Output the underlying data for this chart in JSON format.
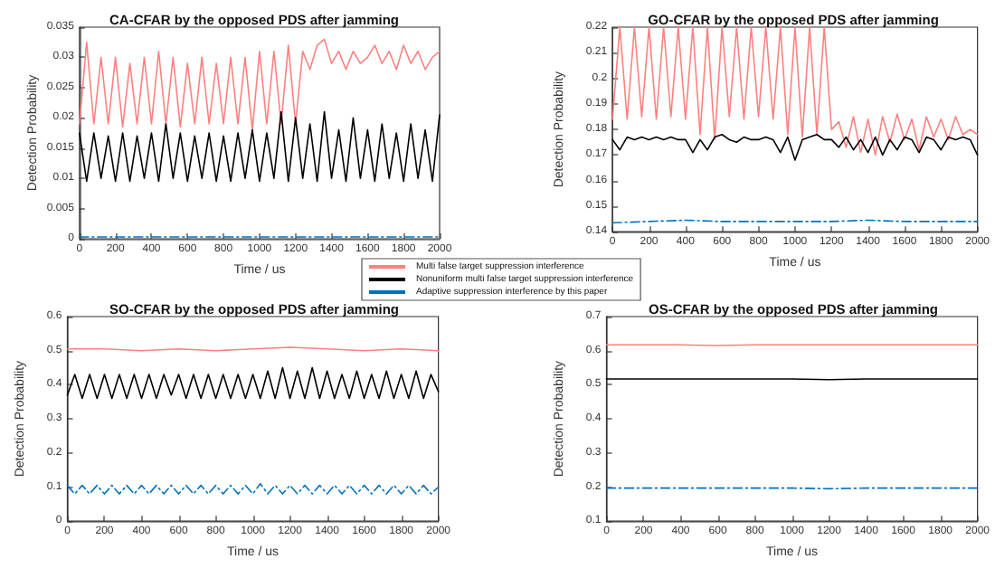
{
  "chart_data": [
    {
      "type": "line",
      "title": "CA-CFAR by the opposed PDS after jamming",
      "xlabel": "Time / us",
      "ylabel": "Detection Probability",
      "xlim": [
        0,
        2000
      ],
      "xticks": [
        0,
        200,
        400,
        600,
        800,
        1000,
        1200,
        1400,
        1600,
        1800,
        2000
      ],
      "ylim": [
        0,
        0.035
      ],
      "yticks": [
        0,
        0.005,
        0.01,
        0.015,
        0.02,
        0.025,
        0.03,
        0.035
      ],
      "grid": false,
      "legend": "bottom right",
      "marker": "none",
      "x": [
        0,
        40,
        80,
        120,
        160,
        200,
        240,
        280,
        320,
        360,
        400,
        440,
        480,
        520,
        560,
        600,
        640,
        680,
        720,
        760,
        800,
        840,
        880,
        920,
        960,
        1000,
        1040,
        1080,
        1120,
        1160,
        1200,
        1240,
        1280,
        1320,
        1360,
        1400,
        1440,
        1480,
        1520,
        1560,
        1600,
        1640,
        1680,
        1720,
        1760,
        1800,
        1840,
        1880,
        1920,
        1960,
        2000
      ],
      "series": [
        {
          "name": "Multi false target suppression interference",
          "color": "#ff8080",
          "values": [
            0.019,
            0.0325,
            0.019,
            0.03,
            0.019,
            0.03,
            0.0185,
            0.029,
            0.019,
            0.03,
            0.019,
            0.031,
            0.019,
            0.03,
            0.0185,
            0.029,
            0.019,
            0.03,
            0.019,
            0.029,
            0.019,
            0.03,
            0.019,
            0.03,
            0.018,
            0.031,
            0.019,
            0.031,
            0.019,
            0.032,
            0.019,
            0.031,
            0.028,
            0.032,
            0.033,
            0.029,
            0.031,
            0.028,
            0.031,
            0.029,
            0.03,
            0.032,
            0.029,
            0.031,
            0.028,
            0.032,
            0.029,
            0.031,
            0.028,
            0.03,
            0.031
          ]
        },
        {
          "name": "Nonuniform multi false target suppression interference",
          "color": "#000000",
          "values": [
            0.0175,
            0.0095,
            0.0175,
            0.01,
            0.017,
            0.0095,
            0.0175,
            0.0095,
            0.017,
            0.01,
            0.0175,
            0.0095,
            0.019,
            0.01,
            0.0175,
            0.0095,
            0.017,
            0.01,
            0.0175,
            0.0095,
            0.017,
            0.0095,
            0.0175,
            0.01,
            0.018,
            0.0095,
            0.0175,
            0.01,
            0.021,
            0.0095,
            0.02,
            0.01,
            0.019,
            0.0095,
            0.021,
            0.01,
            0.018,
            0.0095,
            0.02,
            0.01,
            0.018,
            0.0095,
            0.019,
            0.01,
            0.0175,
            0.0095,
            0.019,
            0.01,
            0.018,
            0.0095,
            0.0205
          ]
        },
        {
          "name": "Adaptive suppression interference by this paper",
          "color": "#0072bd",
          "line_style": "dashed",
          "x": [
            0,
            200,
            400,
            600,
            800,
            1000,
            1200,
            1400,
            1600,
            1800,
            2000
          ],
          "values": [
            0.0003,
            0.0003,
            0.0003,
            0.0003,
            0.0003,
            0.0003,
            0.0003,
            0.0003,
            0.0003,
            0.0003,
            0.0003
          ]
        }
      ]
    },
    {
      "type": "line",
      "title": "GO-CFAR by the opposed PDS after jamming",
      "xlabel": "Time / us",
      "ylabel": "Detection Probability",
      "xlim": [
        0,
        2000
      ],
      "xticks": [
        0,
        200,
        400,
        600,
        800,
        1000,
        1200,
        1400,
        1600,
        1800,
        2000
      ],
      "ylim": [
        0.14,
        0.22
      ],
      "yticks": [
        0.14,
        0.15,
        0.16,
        0.17,
        0.18,
        0.19,
        0.2,
        0.21,
        0.22
      ],
      "grid": false,
      "marker": "none",
      "x": [
        0,
        40,
        80,
        120,
        160,
        200,
        240,
        280,
        320,
        360,
        400,
        440,
        480,
        520,
        560,
        600,
        640,
        680,
        720,
        760,
        800,
        840,
        880,
        920,
        960,
        1000,
        1040,
        1080,
        1120,
        1160,
        1200,
        1240,
        1280,
        1320,
        1360,
        1400,
        1440,
        1480,
        1520,
        1560,
        1600,
        1640,
        1680,
        1720,
        1760,
        1800,
        1840,
        1880,
        1920,
        1960,
        2000
      ],
      "series": [
        {
          "color": "#ff8080",
          "values": [
            0.184,
            0.22,
            0.184,
            0.22,
            0.185,
            0.22,
            0.184,
            0.22,
            0.185,
            0.22,
            0.184,
            0.22,
            0.178,
            0.22,
            0.176,
            0.22,
            0.185,
            0.22,
            0.184,
            0.22,
            0.185,
            0.22,
            0.184,
            0.22,
            0.178,
            0.22,
            0.177,
            0.22,
            0.178,
            0.22,
            0.18,
            0.183,
            0.173,
            0.185,
            0.171,
            0.184,
            0.17,
            0.185,
            0.175,
            0.186,
            0.176,
            0.184,
            0.172,
            0.185,
            0.177,
            0.184,
            0.176,
            0.185,
            0.178,
            0.18,
            0.178
          ]
        },
        {
          "color": "#000000",
          "values": [
            0.176,
            0.172,
            0.177,
            0.176,
            0.177,
            0.176,
            0.177,
            0.176,
            0.177,
            0.176,
            0.176,
            0.171,
            0.176,
            0.172,
            0.177,
            0.178,
            0.176,
            0.175,
            0.177,
            0.176,
            0.176,
            0.177,
            0.176,
            0.171,
            0.177,
            0.168,
            0.176,
            0.177,
            0.178,
            0.176,
            0.176,
            0.173,
            0.177,
            0.172,
            0.176,
            0.171,
            0.177,
            0.17,
            0.176,
            0.172,
            0.177,
            0.176,
            0.171,
            0.177,
            0.176,
            0.172,
            0.177,
            0.176,
            0.177,
            0.176,
            0.17
          ]
        },
        {
          "color": "#0072bd",
          "line_style": "dashed",
          "x": [
            0,
            200,
            400,
            600,
            800,
            1000,
            1200,
            1400,
            1600,
            1800,
            2000
          ],
          "values": [
            0.1435,
            0.144,
            0.1445,
            0.144,
            0.144,
            0.144,
            0.144,
            0.1445,
            0.144,
            0.144,
            0.144
          ]
        }
      ]
    },
    {
      "type": "line",
      "title": "SO-CFAR by the opposed PDS after jamming",
      "xlabel": "Time / us",
      "ylabel": "Detection Probability",
      "xlim": [
        0,
        2000
      ],
      "xticks": [
        0,
        200,
        400,
        600,
        800,
        1000,
        1200,
        1400,
        1600,
        1800,
        2000
      ],
      "ylim": [
        0,
        0.6
      ],
      "yticks": [
        0,
        0.1,
        0.2,
        0.3,
        0.4,
        0.5,
        0.6
      ],
      "grid": false,
      "marker": "none",
      "x": [
        0,
        40,
        80,
        120,
        160,
        200,
        240,
        280,
        320,
        360,
        400,
        440,
        480,
        520,
        560,
        600,
        640,
        680,
        720,
        760,
        800,
        840,
        880,
        920,
        960,
        1000,
        1040,
        1080,
        1120,
        1160,
        1200,
        1240,
        1280,
        1320,
        1360,
        1400,
        1440,
        1480,
        1520,
        1560,
        1600,
        1640,
        1680,
        1720,
        1760,
        1800,
        1840,
        1880,
        1920,
        1960,
        2000
      ],
      "series": [
        {
          "color": "#ff8080",
          "x": [
            0,
            200,
            400,
            600,
            800,
            1000,
            1200,
            1400,
            1600,
            1800,
            2000
          ],
          "values": [
            0.505,
            0.505,
            0.5,
            0.505,
            0.5,
            0.505,
            0.51,
            0.505,
            0.5,
            0.505,
            0.5
          ]
        },
        {
          "color": "#000000",
          "values": [
            0.37,
            0.43,
            0.36,
            0.43,
            0.36,
            0.43,
            0.36,
            0.43,
            0.36,
            0.43,
            0.36,
            0.43,
            0.36,
            0.43,
            0.37,
            0.43,
            0.36,
            0.43,
            0.36,
            0.43,
            0.36,
            0.43,
            0.36,
            0.43,
            0.36,
            0.43,
            0.36,
            0.44,
            0.36,
            0.45,
            0.36,
            0.44,
            0.36,
            0.45,
            0.36,
            0.44,
            0.36,
            0.43,
            0.36,
            0.44,
            0.36,
            0.43,
            0.36,
            0.44,
            0.36,
            0.43,
            0.36,
            0.44,
            0.36,
            0.43,
            0.38
          ]
        },
        {
          "color": "#0072bd",
          "line_style": "dashed",
          "values": [
            0.105,
            0.08,
            0.105,
            0.08,
            0.105,
            0.08,
            0.105,
            0.08,
            0.105,
            0.08,
            0.105,
            0.08,
            0.105,
            0.08,
            0.105,
            0.08,
            0.105,
            0.08,
            0.105,
            0.08,
            0.105,
            0.08,
            0.105,
            0.08,
            0.105,
            0.08,
            0.11,
            0.08,
            0.105,
            0.08,
            0.105,
            0.08,
            0.105,
            0.08,
            0.105,
            0.08,
            0.105,
            0.08,
            0.105,
            0.08,
            0.105,
            0.08,
            0.105,
            0.08,
            0.105,
            0.08,
            0.105,
            0.08,
            0.105,
            0.08,
            0.1
          ]
        }
      ]
    },
    {
      "type": "line",
      "title": "OS-CFAR by the opposed PDS after jamming",
      "xlabel": "Time / us",
      "ylabel": "Detection Probability",
      "xlim": [
        0,
        2000
      ],
      "xticks": [
        0,
        200,
        400,
        600,
        800,
        1000,
        1200,
        1400,
        1600,
        1800,
        2000
      ],
      "ylim": [
        0.1,
        0.7
      ],
      "yticks": [
        0.1,
        0.2,
        0.3,
        0.4,
        0.5,
        0.6,
        0.7
      ],
      "grid": false,
      "marker": "none",
      "x": [
        0,
        200,
        400,
        600,
        800,
        1000,
        1200,
        1400,
        1600,
        1800,
        2000
      ],
      "series": [
        {
          "color": "#ff8080",
          "values": [
            0.617,
            0.617,
            0.617,
            0.615,
            0.617,
            0.617,
            0.617,
            0.617,
            0.617,
            0.617,
            0.617
          ]
        },
        {
          "color": "#000000",
          "values": [
            0.517,
            0.517,
            0.517,
            0.517,
            0.517,
            0.517,
            0.515,
            0.517,
            0.517,
            0.517,
            0.517
          ]
        },
        {
          "color": "#0072bd",
          "line_style": "dashed",
          "values": [
            0.197,
            0.197,
            0.197,
            0.197,
            0.197,
            0.197,
            0.195,
            0.197,
            0.197,
            0.197,
            0.197
          ]
        }
      ]
    }
  ]
}
